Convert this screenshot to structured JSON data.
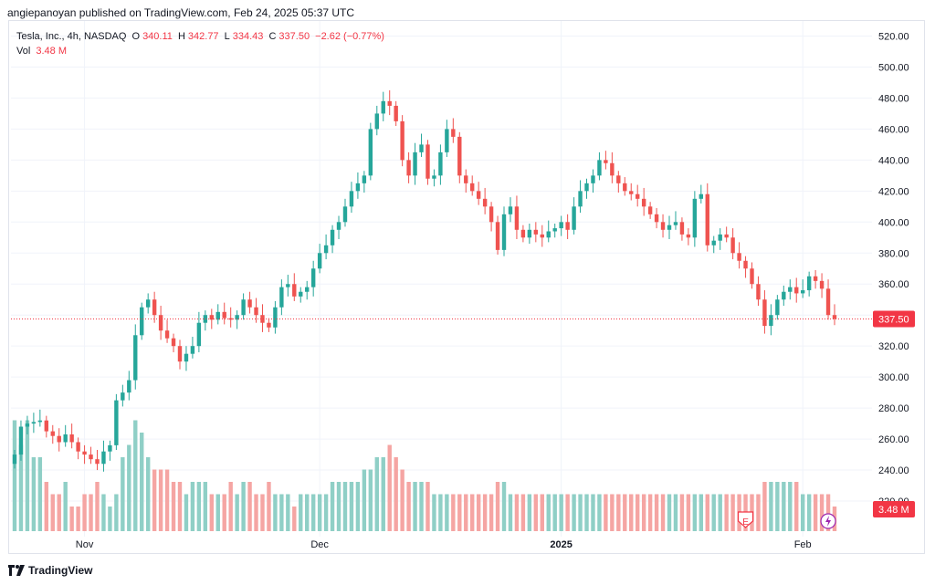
{
  "header": {
    "byline": "angiepanoyan published on TradingView.com, Feb 24, 2025 05:37 UTC"
  },
  "legend": {
    "symbol": "Tesla, Inc., 4h, NASDAQ",
    "open_label": "O",
    "open": "340.11",
    "high_label": "H",
    "high": "342.77",
    "low_label": "L",
    "low": "334.43",
    "close_label": "C",
    "close": "337.50",
    "change": "−2.62 (−0.77%)",
    "vol_label": "Vol",
    "vol": "3.48 M"
  },
  "footer": {
    "brand": "TradingView"
  },
  "colors": {
    "up": "#26a69a",
    "down": "#ef5350",
    "up_vol": "#8fcfc6",
    "down_vol": "#f5a5a3",
    "price_line": "#f23645",
    "grid": "#f0f3fa",
    "axis_text": "#131722"
  },
  "icons": {
    "earnings": "E",
    "dividend": "lightning-icon"
  },
  "chart_data": {
    "type": "candlestick",
    "ylim": [
      200,
      525
    ],
    "y_ticks": [
      220,
      240,
      260,
      280,
      300,
      320,
      340,
      360,
      380,
      400,
      420,
      440,
      460,
      480,
      500,
      520
    ],
    "y_tick_labels": [
      "220.00",
      "240.00",
      "260.00",
      "280.00",
      "300.00",
      "320.00",
      "340.00",
      "360.00",
      "380.00",
      "400.00",
      "420.00",
      "440.00",
      "460.00",
      "480.00",
      "500.00",
      "520.00"
    ],
    "x_labels": [
      {
        "label": "Nov",
        "index": 11,
        "bold": false
      },
      {
        "label": "Dec",
        "index": 48,
        "bold": false
      },
      {
        "label": "2025",
        "index": 86,
        "bold": true
      },
      {
        "label": "Feb",
        "index": 124,
        "bold": false
      }
    ],
    "last_price": 337.5,
    "last_price_label": "337.50",
    "volume_label": "3.48 M",
    "volume_ylim": [
      0,
      10
    ],
    "close": [
      250,
      268,
      270,
      271,
      272,
      265,
      262,
      258,
      263,
      258,
      252,
      250,
      247,
      244,
      252,
      256,
      285,
      290,
      298,
      327,
      345,
      350,
      340,
      330,
      325,
      320,
      310,
      315,
      320,
      335,
      340,
      337,
      342,
      338,
      337,
      340,
      350,
      345,
      340,
      335,
      332,
      345,
      358,
      360,
      352,
      355,
      358,
      370,
      380,
      385,
      395,
      400,
      410,
      420,
      425,
      430,
      460,
      470,
      478,
      475,
      465,
      440,
      430,
      445,
      450,
      428,
      430,
      445,
      460,
      455,
      430,
      425,
      420,
      415,
      410,
      400,
      382,
      405,
      410,
      395,
      390,
      395,
      392,
      390,
      394,
      396,
      400,
      395,
      410,
      420,
      425,
      430,
      440,
      438,
      430,
      425,
      420,
      418,
      415,
      410,
      405,
      400,
      395,
      398,
      400,
      392,
      390,
      415,
      418,
      385,
      388,
      392,
      390,
      380,
      375,
      370,
      360,
      350,
      333,
      340,
      350,
      355,
      358,
      354,
      356,
      365,
      362,
      357,
      340,
      337.5
    ],
    "volume": [
      9,
      7,
      9,
      6,
      6,
      4,
      3,
      3,
      4,
      2,
      2,
      3,
      3,
      4,
      3,
      2,
      3,
      6,
      7,
      9,
      8,
      6,
      5,
      5,
      5,
      4,
      4,
      3,
      4,
      4,
      4,
      3,
      3,
      3,
      4,
      3,
      4,
      4,
      3,
      3,
      4,
      3,
      3,
      3,
      2,
      3,
      3,
      3,
      3,
      3,
      4,
      4,
      4,
      4,
      4,
      5,
      5,
      6,
      6,
      7,
      6,
      5,
      4,
      4,
      4,
      4,
      3,
      3,
      3,
      3,
      3,
      3,
      3,
      3,
      3,
      3,
      4,
      4,
      3,
      3,
      3,
      3,
      3,
      3,
      3,
      3,
      3,
      3,
      3,
      3,
      3,
      3,
      3,
      3,
      3,
      3,
      3,
      3,
      3,
      3,
      3,
      3,
      3,
      3,
      3,
      3,
      3,
      3,
      3,
      3,
      3,
      3,
      3,
      3,
      3,
      3,
      3,
      3,
      4,
      4,
      4,
      4,
      4,
      4,
      3,
      3,
      3,
      3,
      3,
      2
    ]
  }
}
